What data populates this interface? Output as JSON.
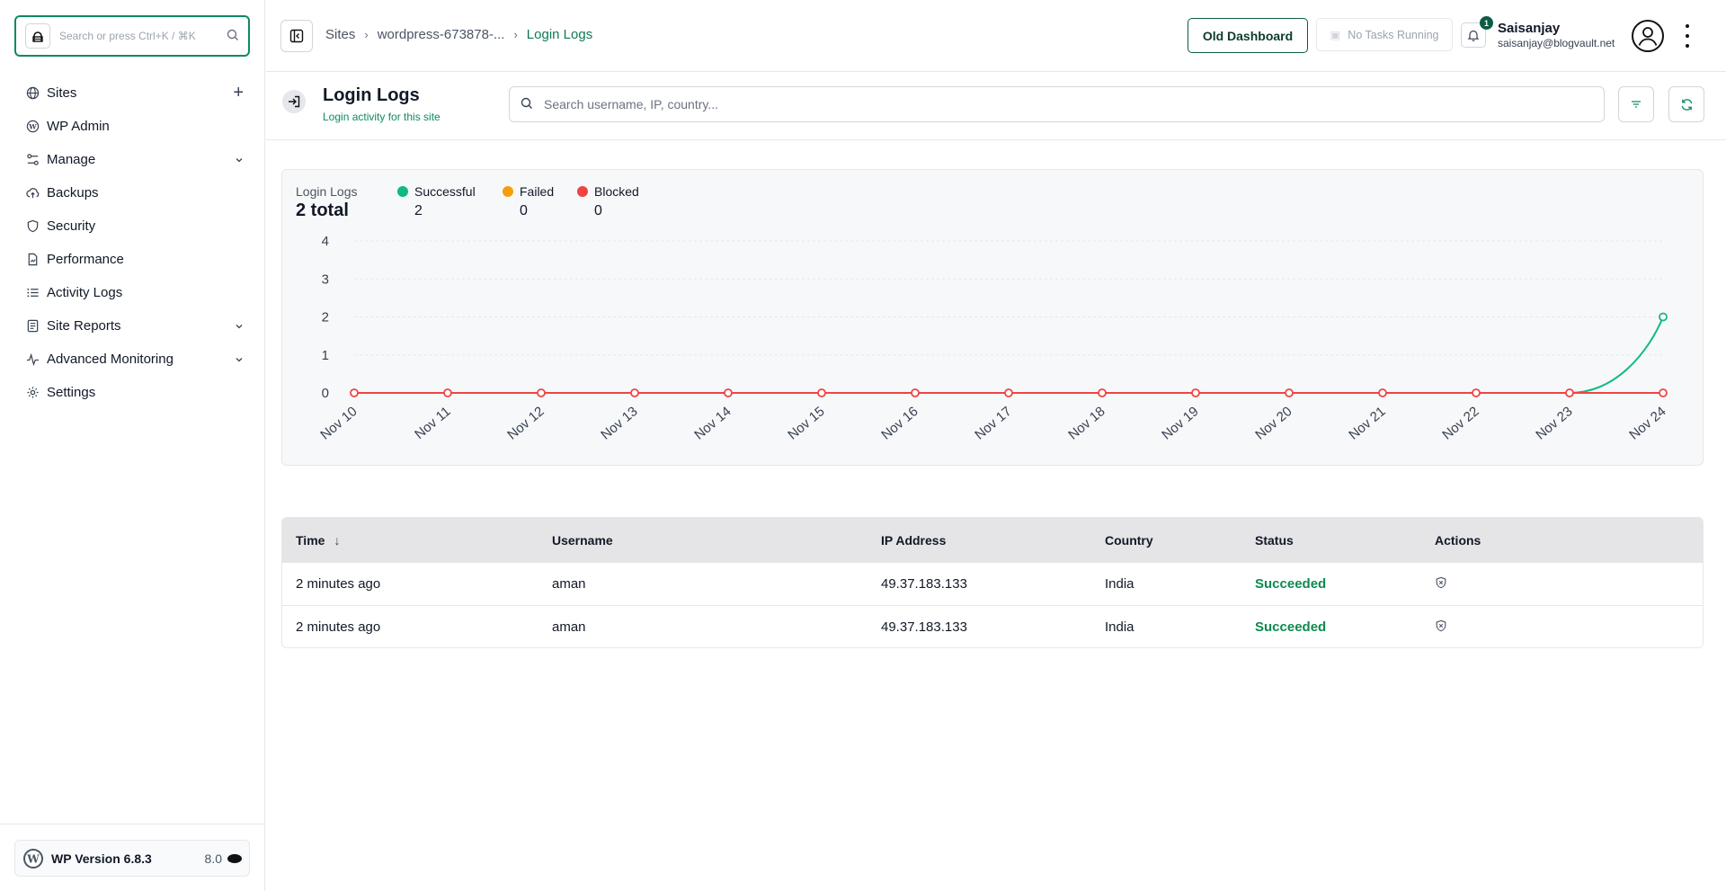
{
  "sidebar": {
    "search_placeholder": "Search or press Ctrl+K / ⌘K",
    "items": [
      {
        "label": "Sites",
        "icon": "globe-icon",
        "right": "+"
      },
      {
        "label": "WP Admin",
        "icon": "wordpress-icon",
        "right": ""
      },
      {
        "label": "Manage",
        "icon": "manage-icon",
        "right": "⌄"
      },
      {
        "label": "Backups",
        "icon": "cloud-upload-icon",
        "right": ""
      },
      {
        "label": "Security",
        "icon": "shield-icon",
        "right": ""
      },
      {
        "label": "Performance",
        "icon": "document-icon",
        "right": ""
      },
      {
        "label": "Activity Logs",
        "icon": "list-icon",
        "right": ""
      },
      {
        "label": "Site Reports",
        "icon": "report-icon",
        "right": "⌄"
      },
      {
        "label": "Advanced Monitoring",
        "icon": "activity-icon",
        "right": "⌄"
      },
      {
        "label": "Settings",
        "icon": "gear-icon",
        "right": ""
      }
    ],
    "footer": {
      "wp_version": "WP Version 6.8.3",
      "php_version": "8.0"
    }
  },
  "header": {
    "breadcrumb": [
      "Sites",
      "wordpress-673878-...",
      "Login Logs"
    ],
    "old_dashboard": "Old Dashboard",
    "tasks": "No Tasks Running",
    "notification_count": "1",
    "user_name": "Saisanjay",
    "user_email": "saisanjay@blogvault.net"
  },
  "page": {
    "title": "Login Logs",
    "subtitle": "Login activity for this site",
    "search_placeholder": "Search username, IP, country..."
  },
  "summary": {
    "label": "Login Logs",
    "total": "2 total",
    "legend": [
      {
        "name": "Successful",
        "value": "2",
        "color": "#10b981"
      },
      {
        "name": "Failed",
        "value": "0",
        "color": "#f59e0b"
      },
      {
        "name": "Blocked",
        "value": "0",
        "color": "#ef4444"
      }
    ]
  },
  "chart_data": {
    "type": "line",
    "categories": [
      "Nov 10",
      "Nov 11",
      "Nov 12",
      "Nov 13",
      "Nov 14",
      "Nov 15",
      "Nov 16",
      "Nov 17",
      "Nov 18",
      "Nov 19",
      "Nov 20",
      "Nov 21",
      "Nov 22",
      "Nov 23",
      "Nov 24"
    ],
    "series": [
      {
        "name": "Successful",
        "color": "#10b981",
        "values": [
          0,
          0,
          0,
          0,
          0,
          0,
          0,
          0,
          0,
          0,
          0,
          0,
          0,
          0,
          2
        ]
      },
      {
        "name": "Failed",
        "color": "#f59e0b",
        "values": [
          0,
          0,
          0,
          0,
          0,
          0,
          0,
          0,
          0,
          0,
          0,
          0,
          0,
          0,
          0
        ]
      },
      {
        "name": "Blocked",
        "color": "#ef4444",
        "values": [
          0,
          0,
          0,
          0,
          0,
          0,
          0,
          0,
          0,
          0,
          0,
          0,
          0,
          0,
          0
        ]
      }
    ],
    "yticks": [
      0,
      1,
      2,
      3,
      4
    ],
    "ylim": [
      0,
      4
    ],
    "grid": true
  },
  "table": {
    "columns": [
      "Time",
      "Username",
      "IP Address",
      "Country",
      "Status",
      "Actions"
    ],
    "rows": [
      {
        "time": "2 minutes ago",
        "username": "aman",
        "ip": "49.37.183.133",
        "country": "India",
        "status": "Succeeded"
      },
      {
        "time": "2 minutes ago",
        "username": "aman",
        "ip": "49.37.183.133",
        "country": "India",
        "status": "Succeeded"
      }
    ]
  }
}
